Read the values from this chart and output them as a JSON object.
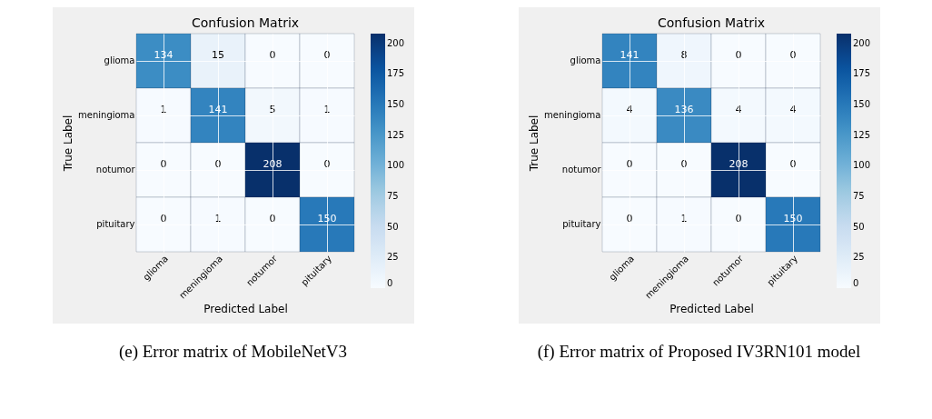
{
  "chart_data": [
    {
      "type": "heatmap",
      "title": "Confusion Matrix",
      "xlabel": "Predicted Label",
      "ylabel": "True Label",
      "categories": [
        "glioma",
        "meningioma",
        "notumor",
        "pituitary"
      ],
      "y_categories": [
        "glioma",
        "meningioma",
        "notumor",
        "pituitary"
      ],
      "cells": [
        [
          134,
          15,
          0,
          0
        ],
        [
          1,
          141,
          5,
          1
        ],
        [
          0,
          0,
          208,
          0
        ],
        [
          0,
          1,
          0,
          150
        ]
      ],
      "clim": [
        0,
        208
      ],
      "cticks": [
        0,
        25,
        50,
        75,
        100,
        125,
        150,
        175,
        200
      ],
      "data_labels": true,
      "grid": true,
      "annotations": [
        "(e) Error matrix of MobileNetV3"
      ]
    },
    {
      "type": "heatmap",
      "title": "Confusion Matrix",
      "xlabel": "Predicted Label",
      "ylabel": "True Label",
      "categories": [
        "glioma",
        "meningioma",
        "notumor",
        "pituitary"
      ],
      "y_categories": [
        "glioma",
        "meningioma",
        "notumor",
        "pituitary"
      ],
      "cells": [
        [
          141,
          8,
          0,
          0
        ],
        [
          4,
          136,
          4,
          4
        ],
        [
          0,
          0,
          208,
          0
        ],
        [
          0,
          1,
          0,
          150
        ]
      ],
      "clim": [
        0,
        208
      ],
      "cticks": [
        0,
        25,
        50,
        75,
        100,
        125,
        150,
        175,
        200
      ],
      "data_labels": true,
      "grid": true,
      "annotations": [
        "(f) Error matrix of Proposed IV3RN101 model"
      ]
    }
  ]
}
